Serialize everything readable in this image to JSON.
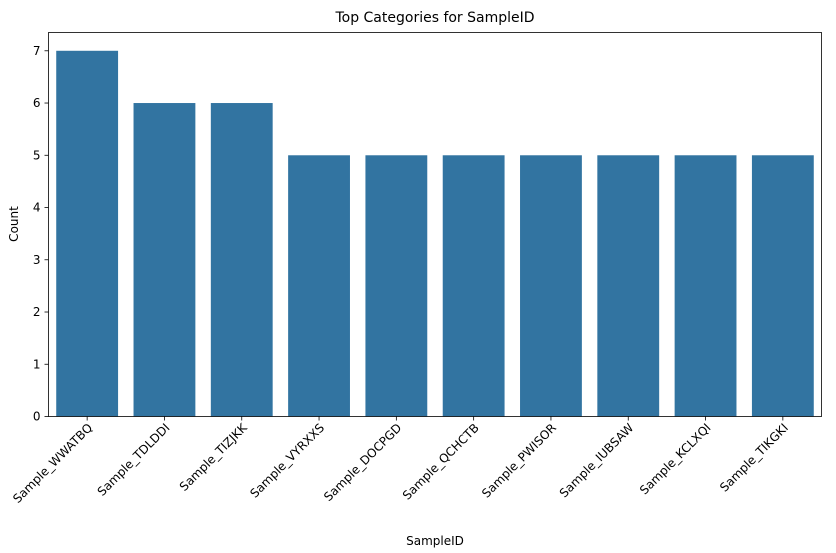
{
  "chart_data": {
    "type": "bar",
    "title": "Top Categories for SampleID",
    "xlabel": "SampleID",
    "ylabel": "Count",
    "categories": [
      "Sample_WWATBQ",
      "Sample_TDLDDI",
      "Sample_TIZJKK",
      "Sample_VYRXXS",
      "Sample_DOCPGD",
      "Sample_QCHCTB",
      "Sample_PWISOR",
      "Sample_IUBSAW",
      "Sample_KCLXQI",
      "Sample_TIKGKI"
    ],
    "values": [
      7,
      6,
      6,
      5,
      5,
      5,
      5,
      5,
      5,
      5
    ],
    "ylim": [
      0,
      7.35
    ],
    "yticks": [
      0,
      1,
      2,
      3,
      4,
      5,
      6,
      7
    ],
    "bar_color": "#3274a1",
    "grid": false
  }
}
